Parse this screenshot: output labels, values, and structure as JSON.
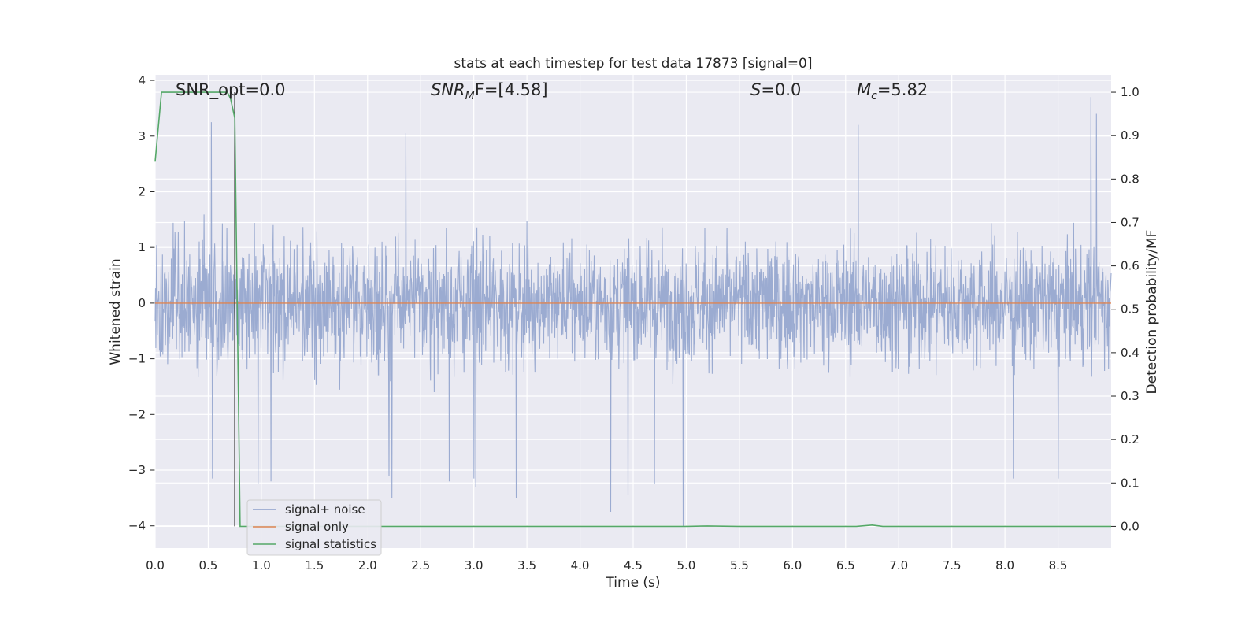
{
  "chart_data": {
    "type": "line",
    "title": "stats at each timestep for test data 17873 [signal=0]",
    "xlabel": "Time (s)",
    "ylabel": "Whitened strain",
    "y2label": "Detection probability/MF",
    "xlim": [
      0.0,
      9.0
    ],
    "ylim": [
      -4.4,
      4.1
    ],
    "y2lim": [
      -0.05,
      1.04
    ],
    "xticks": [
      "0.0",
      "0.5",
      "1.0",
      "1.5",
      "2.0",
      "2.5",
      "3.0",
      "3.5",
      "4.0",
      "4.5",
      "5.0",
      "5.5",
      "6.0",
      "6.5",
      "7.0",
      "7.5",
      "8.0",
      "8.5"
    ],
    "yticks": [
      "4",
      "3",
      "2",
      "1",
      "0",
      "−1",
      "−2",
      "−3",
      "−4"
    ],
    "y2ticks": [
      "1.0",
      "0.9",
      "0.8",
      "0.7",
      "0.6",
      "0.5",
      "0.4",
      "0.3",
      "0.2",
      "0.1",
      "0.0"
    ],
    "grid": true,
    "legend_position": "lower-left",
    "annotations": {
      "snr_opt": "SNR_opt=0.0",
      "snr_mf_main": "SNR",
      "snr_mf_sub": "M",
      "snr_mf_tail": "F=[4.58]",
      "s_main": "S",
      "s_tail": "=0.0",
      "mc_main": "M",
      "mc_sub": "c",
      "mc_tail": "=5.82"
    },
    "vertical_marker_x": 0.75,
    "colors": {
      "noise": "#8da0cb",
      "signal": "#dd8452",
      "stats": "#55a868",
      "background": "#eaeaf2",
      "marker": "#3b3b3b"
    },
    "series": [
      {
        "name": "signal+ noise",
        "note_values": "noise band roughly -1.8..+1.8 with spikes to about +3.7 and -4.0",
        "spikes": [
          {
            "x": 0.53,
            "y": 3.25
          },
          {
            "x": 0.54,
            "y": -3.15
          },
          {
            "x": 0.97,
            "y": -3.25
          },
          {
            "x": 1.09,
            "y": -3.2
          },
          {
            "x": 2.2,
            "y": -3.1
          },
          {
            "x": 2.23,
            "y": -3.5
          },
          {
            "x": 2.36,
            "y": 3.05
          },
          {
            "x": 2.77,
            "y": -3.2
          },
          {
            "x": 3.0,
            "y": -3.15
          },
          {
            "x": 3.02,
            "y": -3.3
          },
          {
            "x": 3.4,
            "y": -3.5
          },
          {
            "x": 4.29,
            "y": -3.75
          },
          {
            "x": 4.45,
            "y": -3.45
          },
          {
            "x": 4.7,
            "y": -3.25
          },
          {
            "x": 4.97,
            "y": -4.0
          },
          {
            "x": 6.62,
            "y": 3.2
          },
          {
            "x": 8.08,
            "y": -3.15
          },
          {
            "x": 8.5,
            "y": -3.15
          },
          {
            "x": 8.81,
            "y": 3.7
          },
          {
            "x": 8.86,
            "y": 3.4
          }
        ]
      },
      {
        "name": "signal only",
        "x": [
          0.0,
          9.0
        ],
        "y": [
          0.0,
          0.0
        ]
      },
      {
        "name": "signal statistics",
        "x": [
          0.0,
          0.06,
          0.1,
          0.15,
          0.3,
          0.5,
          0.68,
          0.71,
          0.75,
          0.8,
          1.0,
          2.0,
          3.0,
          4.0,
          5.0,
          5.2,
          5.5,
          6.0,
          6.6,
          6.75,
          6.85,
          7.0,
          8.0,
          9.0
        ],
        "y": [
          0.84,
          1.0,
          1.0,
          1.0,
          1.0,
          1.0,
          1.0,
          0.985,
          0.94,
          0.0,
          0.0,
          0.0,
          0.0,
          0.0,
          0.0,
          0.001,
          0.0,
          0.0,
          0.0,
          0.003,
          0.0,
          0.0,
          0.0,
          0.0
        ]
      }
    ]
  }
}
